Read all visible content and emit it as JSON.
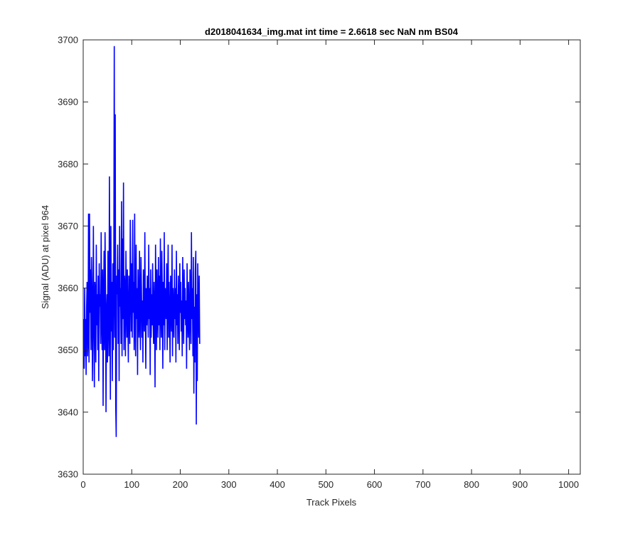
{
  "chart_data": {
    "type": "line",
    "title": "d2018041634_img.mat int time = 2.6618 sec  NaN nm BS04",
    "xlabel": "Track Pixels",
    "ylabel": "Signal (ADU) at pixel 964",
    "xlim": [
      0,
      1024
    ],
    "ylim": [
      3630,
      3700
    ],
    "xticks": [
      0,
      100,
      200,
      300,
      400,
      500,
      600,
      700,
      800,
      900,
      1000
    ],
    "yticks": [
      3630,
      3640,
      3650,
      3660,
      3670,
      3680,
      3690,
      3700
    ],
    "grid": false,
    "legend": "none",
    "series": [
      {
        "color": "#0000ff",
        "x_start": 1,
        "x_step": 1,
        "values": [
          3655,
          3647,
          3660,
          3649,
          3655,
          3646,
          3657,
          3661,
          3649,
          3652,
          3672,
          3648,
          3672,
          3656,
          3663,
          3650,
          3665,
          3660,
          3645,
          3656,
          3670,
          3652,
          3644,
          3661,
          3659,
          3648,
          3667,
          3654,
          3659,
          3650,
          3662,
          3645,
          3664,
          3657,
          3659,
          3651,
          3669,
          3655,
          3650,
          3663,
          3641,
          3658,
          3666,
          3650,
          3669,
          3660,
          3640,
          3656,
          3659,
          3648,
          3666,
          3655,
          3649,
          3678,
          3658,
          3642,
          3670,
          3653,
          3661,
          3645,
          3664,
          3650,
          3660,
          3699,
          3652,
          3688,
          3641,
          3636,
          3662,
          3659,
          3667,
          3651,
          3663,
          3645,
          3670,
          3657,
          3660,
          3651,
          3674,
          3649,
          3668,
          3655,
          3677,
          3650,
          3662,
          3660,
          3649,
          3666,
          3658,
          3652,
          3663,
          3655,
          3648,
          3662,
          3658,
          3651,
          3671,
          3660,
          3653,
          3664,
          3652,
          3671,
          3656,
          3661,
          3650,
          3672,
          3655,
          3649,
          3667,
          3655,
          3660,
          3646,
          3663,
          3657,
          3652,
          3666,
          3656,
          3650,
          3665,
          3660,
          3652,
          3658,
          3648,
          3663,
          3657,
          3653,
          3669,
          3655,
          3647,
          3660,
          3654,
          3662,
          3658,
          3652,
          3667,
          3655,
          3660,
          3646,
          3663,
          3652,
          3659,
          3654,
          3664,
          3655,
          3651,
          3661,
          3656,
          3644,
          3667,
          3660,
          3650,
          3663,
          3657,
          3652,
          3665,
          3654,
          3662,
          3650,
          3668,
          3657,
          3652,
          3666,
          3659,
          3647,
          3661,
          3654,
          3669,
          3650,
          3660,
          3658,
          3655,
          3664,
          3650,
          3659,
          3667,
          3652,
          3661,
          3655,
          3648,
          3662,
          3657,
          3653,
          3667,
          3649,
          3660,
          3656,
          3652,
          3663,
          3655,
          3660,
          3648,
          3666,
          3654,
          3659,
          3651,
          3662,
          3657,
          3650,
          3664,
          3656,
          3661,
          3653,
          3658,
          3649,
          3665,
          3657,
          3651,
          3663,
          3655,
          3660,
          3654,
          3658,
          3647,
          3664,
          3656,
          3652,
          3661,
          3655,
          3650,
          3663,
          3657,
          3651,
          3669,
          3655,
          3660,
          3649,
          3665,
          3643,
          3657,
          3648,
          3663,
          3666,
          3638,
          3659,
          3645,
          3664,
          3657,
          3652,
          3662,
          3651
        ]
      }
    ]
  }
}
